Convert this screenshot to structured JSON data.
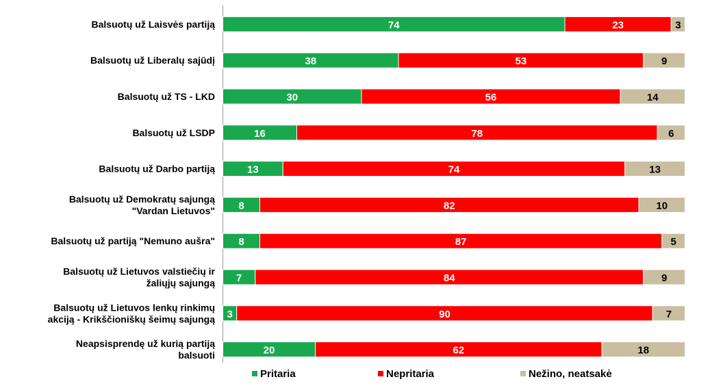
{
  "chart_data": {
    "type": "bar",
    "orientation": "horizontal",
    "stacked": true,
    "grid": false,
    "xlim": [
      0,
      100
    ],
    "legend_position": "bottom",
    "categories": [
      [
        "Balsuotų už Laisvės partiją"
      ],
      [
        "Balsuotų už Liberalų sajūdį"
      ],
      [
        "Balsuotų už TS - LKD"
      ],
      [
        "Balsuotų už LSDP"
      ],
      [
        "Balsuotų už Darbo partiją"
      ],
      [
        "Balsuotų už Demokratų sajungą",
        "\"Vardan Lietuvos\""
      ],
      [
        "Balsuotų už partiją \"Nemuno aušra\""
      ],
      [
        "Balsuotų už Lietuvos valstiečių ir",
        "žaliųjų sajungą"
      ],
      [
        "Balsuotų už Lietuvos lenkų rinkimų",
        "akciją - Krikščioniškų šeimų sajungą"
      ],
      [
        "Neapsisprendę už kurią partiją",
        "balsuoti"
      ]
    ],
    "series": [
      {
        "name": "Pritaria",
        "color": "#19a84e",
        "label_color": "#ffffff",
        "values": [
          74,
          38,
          30,
          16,
          13,
          8,
          8,
          7,
          3,
          20
        ]
      },
      {
        "name": "Nepritaria",
        "color": "#ff0000",
        "label_color": "#ffffff",
        "values": [
          23,
          53,
          56,
          78,
          74,
          82,
          87,
          84,
          90,
          62
        ]
      },
      {
        "name": "Nežino, neatsakė",
        "color": "#c9bea0",
        "label_color": "#000000",
        "values": [
          3,
          9,
          14,
          6,
          13,
          10,
          5,
          9,
          7,
          18
        ]
      }
    ]
  }
}
